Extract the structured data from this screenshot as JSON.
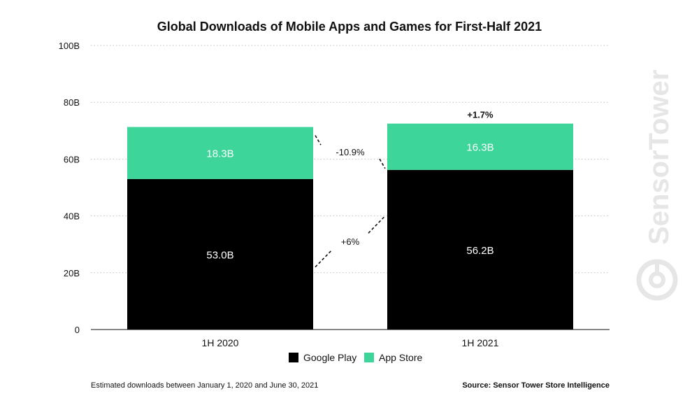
{
  "chart_data": {
    "type": "bar",
    "stacked": true,
    "title": "Global Downloads of Mobile Apps and Games for First-Half 2021",
    "categories": [
      "1H 2020",
      "1H 2021"
    ],
    "series": [
      {
        "name": "Google Play",
        "values": [
          53.0,
          56.2
        ],
        "labels": [
          "53.0B",
          "56.2B"
        ],
        "color": "#000000"
      },
      {
        "name": "App Store",
        "values": [
          18.3,
          16.3
        ],
        "labels": [
          "18.3B",
          "16.3B"
        ],
        "color": "#3dd59a"
      }
    ],
    "ylim": [
      0,
      100
    ],
    "yticks": [
      0,
      20,
      40,
      60,
      80,
      100
    ],
    "ytick_labels": [
      "0",
      "20B",
      "40B",
      "60B",
      "80B",
      "100B"
    ],
    "grid": true,
    "legend_position": "bottom-center",
    "annotations": {
      "app_store_change": "-10.9%",
      "google_play_change": "+6%",
      "total_change": "+1.7%"
    }
  },
  "footer": {
    "note": "Estimated downloads between January 1, 2020 and June 30, 2021",
    "source": "Source: Sensor Tower Store Intelligence"
  },
  "watermark": {
    "text": "SensorTower",
    "icon": "sensor-tower-logo-icon"
  }
}
